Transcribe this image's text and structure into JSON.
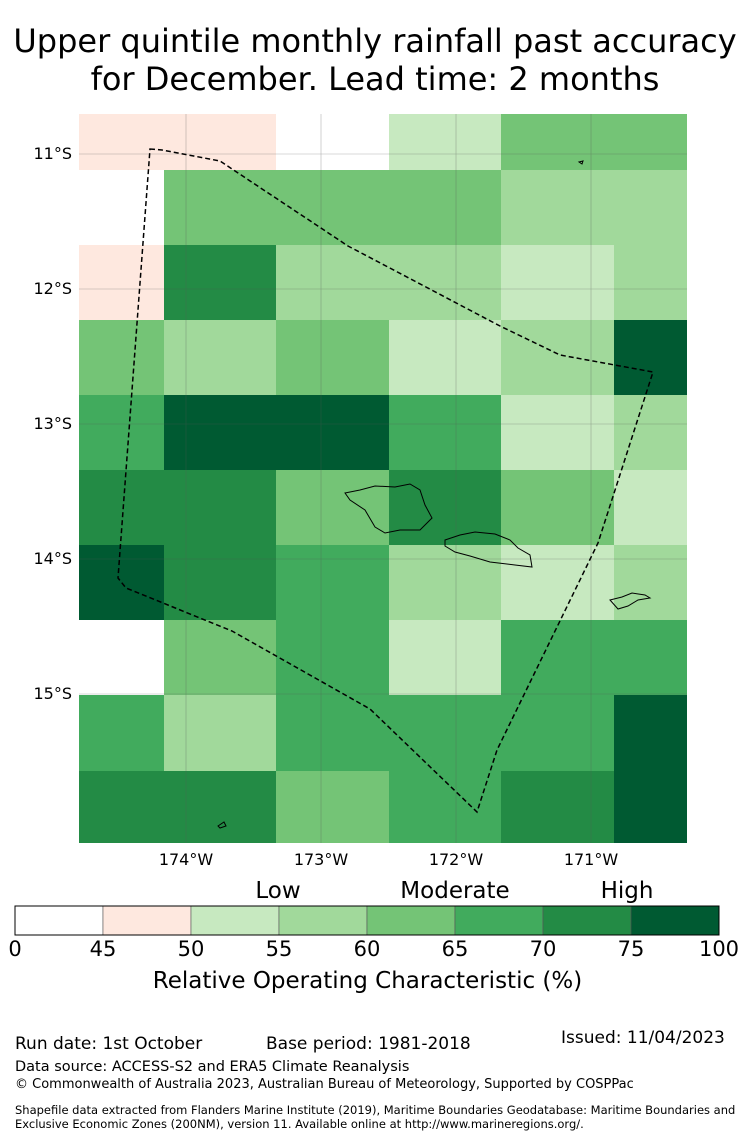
{
  "title_line1": "Upper quintile monthly rainfall past accuracy",
  "title_line2": "for December. Lead time: 2 months",
  "lat_labels": [
    "11°S",
    "12°S",
    "13°S",
    "14°S",
    "15°S"
  ],
  "lon_labels": [
    "174°W",
    "173°W",
    "172°W",
    "171°W"
  ],
  "legend": {
    "categories": [
      "Low",
      "Moderate",
      "High"
    ],
    "ticks": [
      "0",
      "45",
      "50",
      "55",
      "60",
      "65",
      "70",
      "75",
      "100"
    ],
    "title": "Relative Operating Characteristic (%)",
    "colors": [
      "#ffffff",
      "#fee8df",
      "#c7e9c0",
      "#a1d99b",
      "#74c476",
      "#41ab5d",
      "#238b45",
      "#005a32"
    ]
  },
  "grid_rows": [
    {
      "cols": [
        1,
        1,
        0,
        2,
        4,
        4
      ]
    },
    {
      "cols": [
        0,
        4,
        4,
        4,
        3,
        3
      ]
    },
    {
      "cols": [
        1,
        6,
        3,
        3,
        2,
        3
      ]
    },
    {
      "cols": [
        4,
        3,
        4,
        2,
        3,
        7
      ]
    },
    {
      "cols": [
        5,
        7,
        7,
        5,
        2,
        3
      ]
    },
    {
      "cols": [
        6,
        6,
        4,
        6,
        4,
        2
      ]
    },
    {
      "cols": [
        7,
        6,
        5,
        3,
        2,
        3
      ]
    },
    {
      "cols": [
        0,
        4,
        5,
        2,
        5,
        5
      ]
    },
    {
      "cols": [
        5,
        3,
        5,
        5,
        5,
        7
      ]
    },
    {
      "cols": [
        6,
        6,
        4,
        5,
        6,
        7
      ]
    }
  ],
  "footer": {
    "run_date": "Run date: 1st October",
    "base_period": "Base period: 1981-2018",
    "issued": "Issued: 11/04/2023",
    "data_source": "Data source: ACCESS-S2 and ERA5 Climate Reanalysis",
    "copyright": "© Commonwealth of Australia 2023, Australian Bureau of Meteorology, Supported by COSPPac",
    "shapefile": "Shapefile data extracted from Flanders Marine Institute (2019), Maritime Boundaries Geodatabase: Maritime Boundaries and Exclusive Economic Zones (200NM), version 11. Available online at http://www.marineregions.org/."
  }
}
